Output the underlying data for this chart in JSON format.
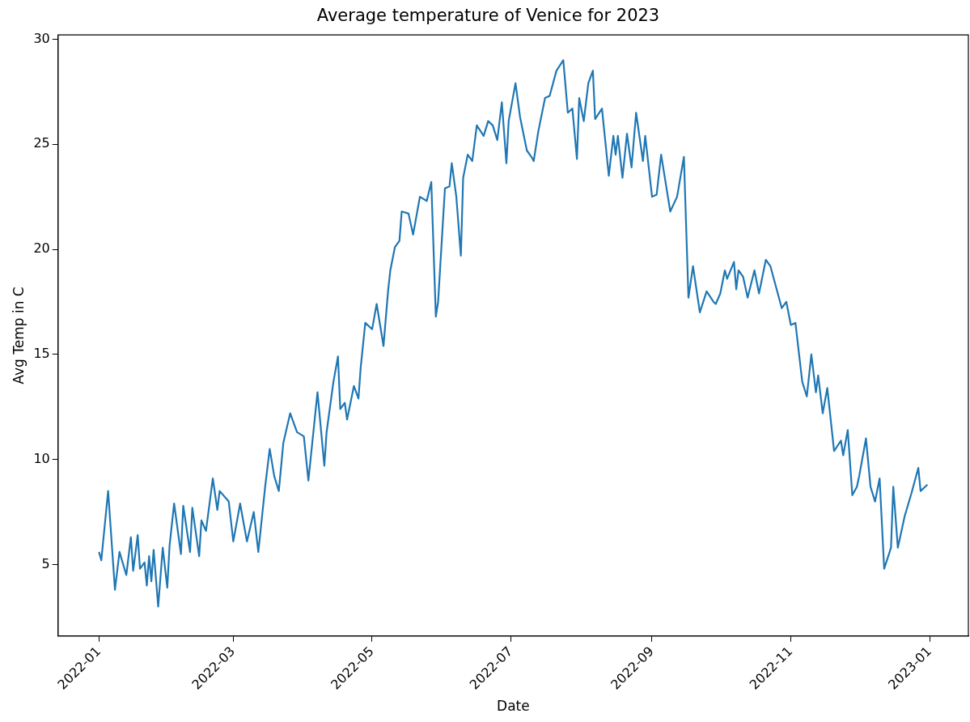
{
  "chart_data": {
    "type": "line",
    "title": "Average temperature of Venice for 2023",
    "xlabel": "Date",
    "ylabel": "Avg Temp in C",
    "x": [
      "2022-01-01",
      "2022-01-02",
      "2022-01-05",
      "2022-01-08",
      "2022-01-10",
      "2022-01-13",
      "2022-01-15",
      "2022-01-16",
      "2022-01-18",
      "2022-01-19",
      "2022-01-21",
      "2022-01-22",
      "2022-01-23",
      "2022-01-24",
      "2022-01-25",
      "2022-01-27",
      "2022-01-29",
      "2022-01-31",
      "2022-02-01",
      "2022-02-03",
      "2022-02-06",
      "2022-02-07",
      "2022-02-10",
      "2022-02-11",
      "2022-02-14",
      "2022-02-15",
      "2022-02-17",
      "2022-02-20",
      "2022-02-22",
      "2022-02-23",
      "2022-02-27",
      "2022-03-01",
      "2022-03-04",
      "2022-03-07",
      "2022-03-10",
      "2022-03-12",
      "2022-03-15",
      "2022-03-17",
      "2022-03-19",
      "2022-03-21",
      "2022-03-23",
      "2022-03-26",
      "2022-03-29",
      "2022-04-01",
      "2022-04-03",
      "2022-04-07",
      "2022-04-10",
      "2022-04-11",
      "2022-04-14",
      "2022-04-16",
      "2022-04-17",
      "2022-04-19",
      "2022-04-20",
      "2022-04-23",
      "2022-04-25",
      "2022-04-26",
      "2022-04-28",
      "2022-05-01",
      "2022-05-03",
      "2022-05-06",
      "2022-05-08",
      "2022-05-09",
      "2022-05-11",
      "2022-05-13",
      "2022-05-14",
      "2022-05-17",
      "2022-05-19",
      "2022-05-22",
      "2022-05-25",
      "2022-05-27",
      "2022-05-29",
      "2022-05-30",
      "2022-06-02",
      "2022-06-04",
      "2022-06-05",
      "2022-06-07",
      "2022-06-09",
      "2022-06-10",
      "2022-06-12",
      "2022-06-14",
      "2022-06-16",
      "2022-06-19",
      "2022-06-21",
      "2022-06-23",
      "2022-06-25",
      "2022-06-27",
      "2022-06-29",
      "2022-06-30",
      "2022-07-03",
      "2022-07-05",
      "2022-07-08",
      "2022-07-10",
      "2022-07-11",
      "2022-07-13",
      "2022-07-16",
      "2022-07-18",
      "2022-07-21",
      "2022-07-24",
      "2022-07-26",
      "2022-07-28",
      "2022-07-30",
      "2022-07-31",
      "2022-08-02",
      "2022-08-04",
      "2022-08-06",
      "2022-08-07",
      "2022-08-10",
      "2022-08-13",
      "2022-08-15",
      "2022-08-16",
      "2022-08-17",
      "2022-08-19",
      "2022-08-21",
      "2022-08-23",
      "2022-08-25",
      "2022-08-28",
      "2022-08-29",
      "2022-09-01",
      "2022-09-03",
      "2022-09-05",
      "2022-09-09",
      "2022-09-12",
      "2022-09-15",
      "2022-09-17",
      "2022-09-19",
      "2022-09-22",
      "2022-09-25",
      "2022-09-28",
      "2022-09-29",
      "2022-10-01",
      "2022-10-03",
      "2022-10-04",
      "2022-10-07",
      "2022-10-08",
      "2022-10-09",
      "2022-10-11",
      "2022-10-13",
      "2022-10-16",
      "2022-10-18",
      "2022-10-21",
      "2022-10-23",
      "2022-10-28",
      "2022-10-30",
      "2022-11-01",
      "2022-11-03",
      "2022-11-06",
      "2022-11-08",
      "2022-11-10",
      "2022-11-12",
      "2022-11-13",
      "2022-11-15",
      "2022-11-17",
      "2022-11-20",
      "2022-11-23",
      "2022-11-24",
      "2022-11-26",
      "2022-11-28",
      "2022-11-30",
      "2022-12-01",
      "2022-12-04",
      "2022-12-06",
      "2022-12-08",
      "2022-12-10",
      "2022-12-12",
      "2022-12-15",
      "2022-12-16",
      "2022-12-18",
      "2022-12-21",
      "2022-12-24",
      "2022-12-26",
      "2022-12-27",
      "2022-12-28",
      "2022-12-31"
    ],
    "series": [
      {
        "color": "#1f77b4",
        "values": [
          5.6,
          5.2,
          8.5,
          3.8,
          5.6,
          4.5,
          6.3,
          4.7,
          6.4,
          4.8,
          5.1,
          4.0,
          5.4,
          4.2,
          5.7,
          3.0,
          5.8,
          3.9,
          5.9,
          7.9,
          5.5,
          7.8,
          5.6,
          7.7,
          5.4,
          7.1,
          6.6,
          9.1,
          7.6,
          8.5,
          8.0,
          6.1,
          7.9,
          6.1,
          7.5,
          5.6,
          8.7,
          10.5,
          9.2,
          8.5,
          10.8,
          12.2,
          11.3,
          11.1,
          9.0,
          13.2,
          9.7,
          11.3,
          13.7,
          14.9,
          12.4,
          12.7,
          11.9,
          13.5,
          12.9,
          14.4,
          16.5,
          16.2,
          17.4,
          15.4,
          18.0,
          19.0,
          20.1,
          20.4,
          21.8,
          21.7,
          20.7,
          22.5,
          22.3,
          23.2,
          16.8,
          17.5,
          22.9,
          23.0,
          24.1,
          22.5,
          19.7,
          23.4,
          24.5,
          24.2,
          25.9,
          25.4,
          26.1,
          25.9,
          25.2,
          27.0,
          24.1,
          26.1,
          27.9,
          26.3,
          24.7,
          24.4,
          24.2,
          25.6,
          27.2,
          27.3,
          28.5,
          29.0,
          26.5,
          26.7,
          24.3,
          27.2,
          26.1,
          27.9,
          28.5,
          26.2,
          26.7,
          23.5,
          25.4,
          24.5,
          25.4,
          23.4,
          25.5,
          23.9,
          26.5,
          24.2,
          25.4,
          22.5,
          22.6,
          24.5,
          21.8,
          22.5,
          24.4,
          17.7,
          19.2,
          17.0,
          18.0,
          17.5,
          17.4,
          17.9,
          19.0,
          18.6,
          19.4,
          18.1,
          19.0,
          18.7,
          17.7,
          19.0,
          17.9,
          19.5,
          19.2,
          17.2,
          17.5,
          16.4,
          16.5,
          13.7,
          13.0,
          15.0,
          13.2,
          14.0,
          12.2,
          13.4,
          10.4,
          10.9,
          10.2,
          11.4,
          8.3,
          8.7,
          9.2,
          11.0,
          8.7,
          8.0,
          9.1,
          4.8,
          5.8,
          8.7,
          5.8,
          7.3,
          8.4,
          9.2,
          9.6,
          8.5,
          8.8
        ]
      }
    ],
    "xlim": [
      "2021-12-14",
      "2023-01-18"
    ],
    "xticks": [
      "2022-01",
      "2022-03",
      "2022-05",
      "2022-07",
      "2022-09",
      "2022-11",
      "2023-01"
    ],
    "ylim": [
      1.6,
      30.2
    ],
    "yticks": [
      5,
      10,
      15,
      20,
      25,
      30
    ]
  }
}
